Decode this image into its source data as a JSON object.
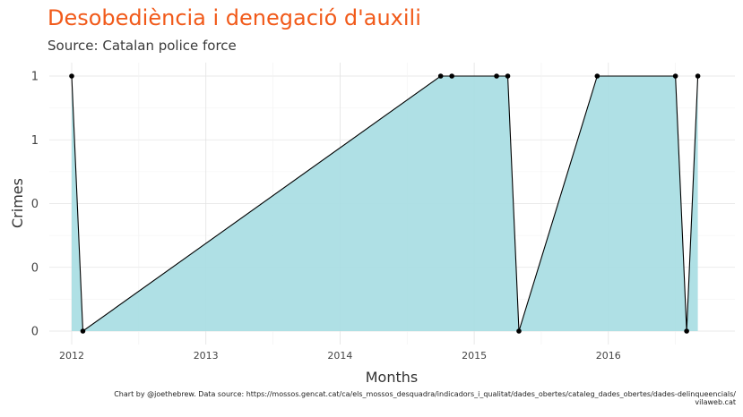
{
  "chart_data": {
    "type": "area",
    "title": "Desobediència i denegació d'auxili",
    "subtitle": "Source: Catalan police force",
    "xlabel": "Months",
    "ylabel": "Crimes",
    "x_tick_labels": [
      "2012",
      "2013",
      "2014",
      "2015",
      "2016"
    ],
    "y_tick_labels": [
      "0",
      "0",
      "0",
      "1",
      "1"
    ],
    "ylim": [
      0,
      1
    ],
    "grid": true,
    "legend": "none",
    "colors": {
      "fill": "#a8dde3",
      "line": "#000000",
      "title": "#f15a1a"
    },
    "x": [
      "2012-01",
      "2012-02",
      "2014-10",
      "2014-11",
      "2015-03",
      "2015-04",
      "2015-05",
      "2015-12",
      "2016-07",
      "2016-08",
      "2016-09"
    ],
    "values": [
      1,
      0,
      1,
      1,
      1,
      1,
      0,
      1,
      1,
      0,
      1
    ]
  },
  "caption": {
    "line1": "Chart by @joethebrew. Data source: https://mossos.gencat.cat/ca/els_mossos_desquadra/indicadors_i_qualitat/dades_obertes/cataleg_dades_obertes/dades-delinqueencials/",
    "line2": "vilaweb.cat"
  }
}
